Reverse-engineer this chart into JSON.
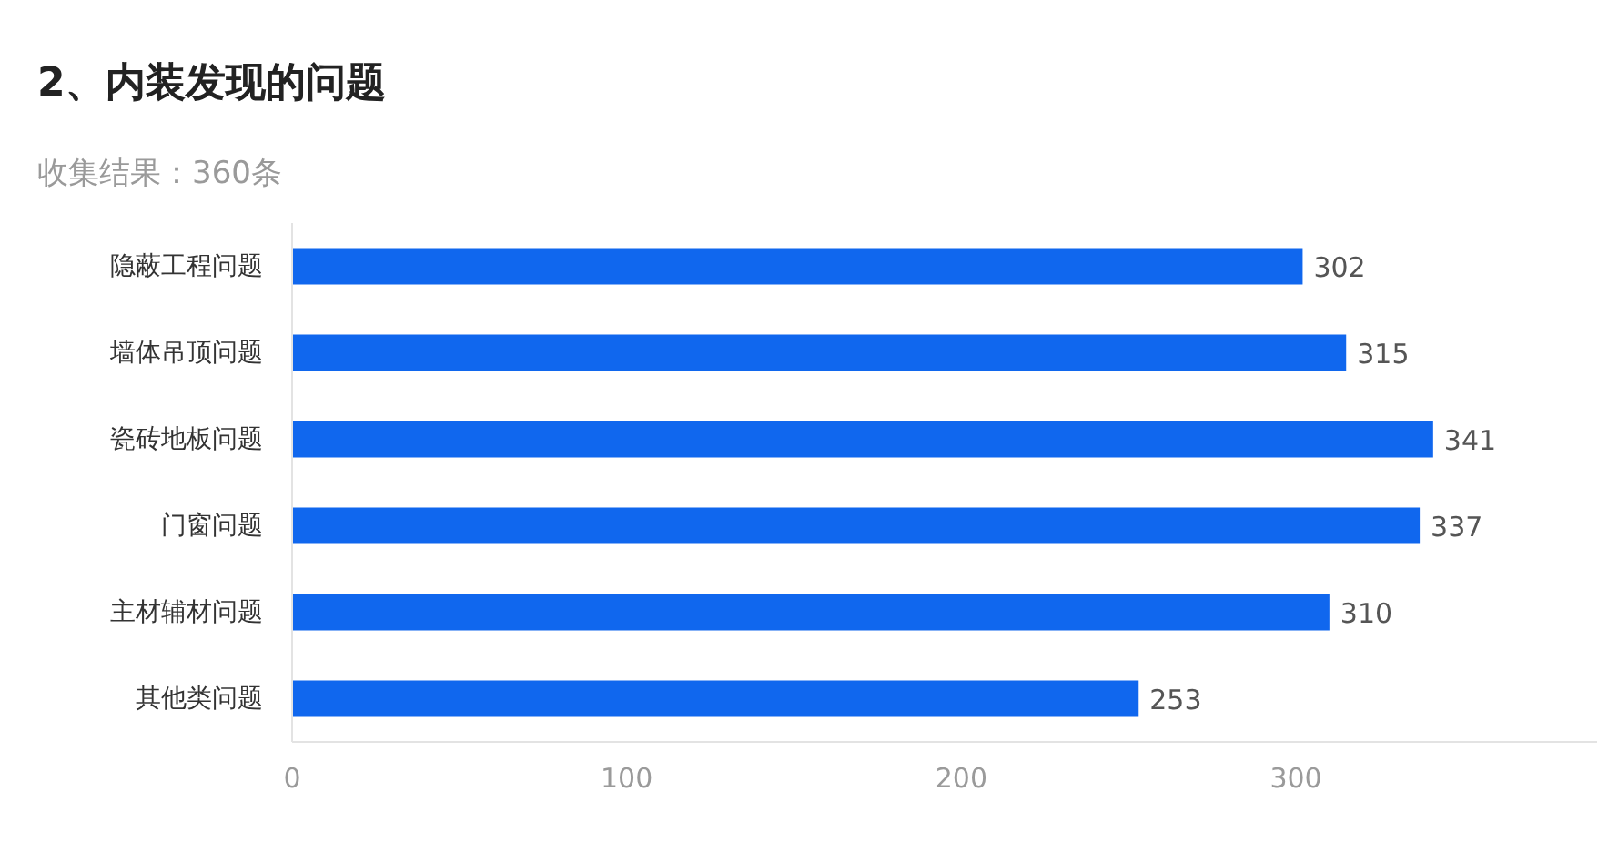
{
  "chart_data": {
    "type": "bar",
    "orientation": "horizontal",
    "title": "2、内装发现的问题",
    "subtitle": "收集结果：360条",
    "categories": [
      "隐蔽工程问题",
      "墙体吊顶问题",
      "瓷砖地板问题",
      "门窗问题",
      "主材辅材问题",
      "其他类问题"
    ],
    "values": [
      302,
      315,
      341,
      337,
      310,
      253
    ],
    "color": "#1067ee",
    "xlim": [
      0,
      390
    ],
    "xticks": [
      0,
      100,
      200,
      300
    ],
    "data_labels": true,
    "grid": false
  }
}
